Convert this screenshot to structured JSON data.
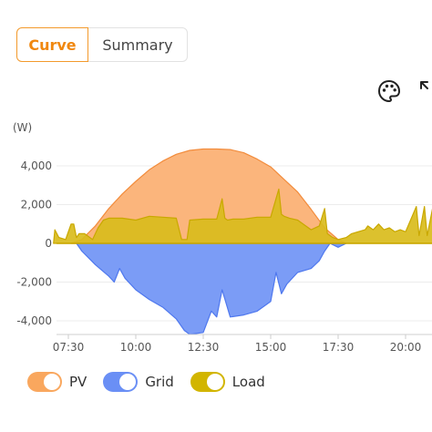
{
  "tabs": {
    "curve": "Curve",
    "summary": "Summary"
  },
  "toolbar": {
    "palette_icon": "palette-icon",
    "expand_icon": "expand-icon"
  },
  "chart_data": {
    "type": "area",
    "unit_label": "(W)",
    "x_ticks": [
      "07:30",
      "10:00",
      "12:30",
      "15:00",
      "17:30",
      "20:00"
    ],
    "y_ticks": [
      {
        "value": 4000,
        "label": "4,000"
      },
      {
        "value": 2000,
        "label": "2,000"
      },
      {
        "value": 0,
        "label": "0"
      },
      {
        "value": -2000,
        "label": "-2,000"
      },
      {
        "value": -4000,
        "label": "-4,000"
      }
    ],
    "x_range_hours": [
      6.9,
      21.1
    ],
    "ylim": [
      -4800,
      5000
    ],
    "grid": true,
    "colors": {
      "pv": "#fbb57c",
      "grid": "#7b9cf6",
      "load": "#d9bc1c"
    },
    "series": [
      {
        "name": "PV",
        "x": [
          7.6,
          8.0,
          8.5,
          9.0,
          9.5,
          10.0,
          10.5,
          11.0,
          11.5,
          12.0,
          12.5,
          13.0,
          13.5,
          14.0,
          14.5,
          15.0,
          15.5,
          16.0,
          16.5,
          17.0,
          17.5,
          17.8
        ],
        "values": [
          0,
          200,
          900,
          1800,
          2550,
          3200,
          3800,
          4250,
          4600,
          4800,
          4870,
          4870,
          4840,
          4680,
          4350,
          3950,
          3300,
          2650,
          1750,
          800,
          200,
          0
        ]
      },
      {
        "name": "Grid",
        "x": [
          7.8,
          8.0,
          8.5,
          9.0,
          9.2,
          9.4,
          9.6,
          10.0,
          10.5,
          11.0,
          11.5,
          11.8,
          12.0,
          12.5,
          12.8,
          13.0,
          13.2,
          13.5,
          14.0,
          14.5,
          15.0,
          15.2,
          15.4,
          15.6,
          16.0,
          16.5,
          16.8,
          17.0,
          17.2,
          17.5,
          17.8
        ],
        "values": [
          0,
          -400,
          -1100,
          -1700,
          -2000,
          -1300,
          -1800,
          -2400,
          -2900,
          -3300,
          -3900,
          -4500,
          -4700,
          -4600,
          -3500,
          -3800,
          -2400,
          -3800,
          -3700,
          -3500,
          -3000,
          -1500,
          -2600,
          -2100,
          -1500,
          -1300,
          -900,
          -400,
          0,
          -200,
          0
        ]
      },
      {
        "name": "Load",
        "x": [
          6.95,
          7.0,
          7.15,
          7.4,
          7.6,
          7.7,
          7.8,
          7.9,
          8.1,
          8.4,
          8.6,
          8.8,
          9.0,
          9.5,
          10.0,
          10.5,
          11.0,
          11.5,
          11.7,
          11.9,
          12.0,
          12.5,
          13.0,
          13.2,
          13.3,
          13.4,
          13.6,
          14.0,
          14.5,
          15.0,
          15.3,
          15.4,
          15.5,
          15.7,
          16.0,
          16.5,
          16.8,
          17.0,
          17.1,
          17.3,
          17.5,
          17.8,
          18.0,
          18.5,
          18.6,
          18.8,
          19.0,
          19.2,
          19.4,
          19.6,
          19.8,
          20.0,
          20.4,
          20.5,
          20.7,
          20.8,
          21.0,
          21.1
        ],
        "values": [
          0,
          700,
          300,
          200,
          1000,
          1000,
          300,
          500,
          500,
          200,
          800,
          1200,
          1300,
          1300,
          1200,
          1400,
          1350,
          1300,
          200,
          200,
          1200,
          1250,
          1250,
          2300,
          1300,
          1200,
          1250,
          1250,
          1350,
          1350,
          2800,
          1500,
          1400,
          1300,
          1200,
          700,
          900,
          1800,
          500,
          300,
          200,
          300,
          500,
          700,
          900,
          700,
          1000,
          700,
          800,
          600,
          700,
          600,
          1900,
          400,
          1900,
          400,
          1800,
          400
        ]
      }
    ]
  },
  "legend": [
    {
      "label": "PV",
      "color": "#f9a75e"
    },
    {
      "label": "Grid",
      "color": "#6a8ff5"
    },
    {
      "label": "Load",
      "color": "#d2b500"
    }
  ]
}
